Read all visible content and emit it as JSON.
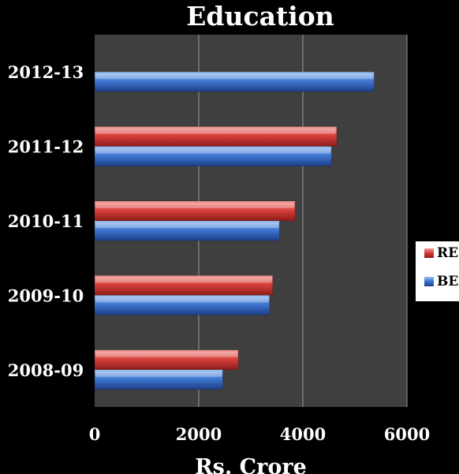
{
  "colors": {
    "background": "#000000",
    "plot_area": "#3f3f3f",
    "gridline": "#9a9a9a",
    "text": "#ffffff",
    "RE": "#d9403c",
    "BE": "#3f78d3"
  },
  "chart_data": {
    "type": "bar",
    "orientation": "horizontal",
    "title": "Education",
    "xlabel": "Rs. Crore",
    "ylabel": "",
    "categories": [
      "2012-13",
      "2011-12",
      "2010-11",
      "2009-10",
      "2008-09"
    ],
    "xlim": [
      0,
      6000
    ],
    "xticks": [
      "0",
      "2000",
      "4000",
      "6000"
    ],
    "grid": true,
    "legend_position": "right",
    "series": [
      {
        "name": "RE",
        "values": [
          null,
          4650,
          3850,
          3420,
          2760
        ]
      },
      {
        "name": "BE",
        "values": [
          5370,
          4550,
          3550,
          3360,
          2460
        ]
      }
    ]
  }
}
